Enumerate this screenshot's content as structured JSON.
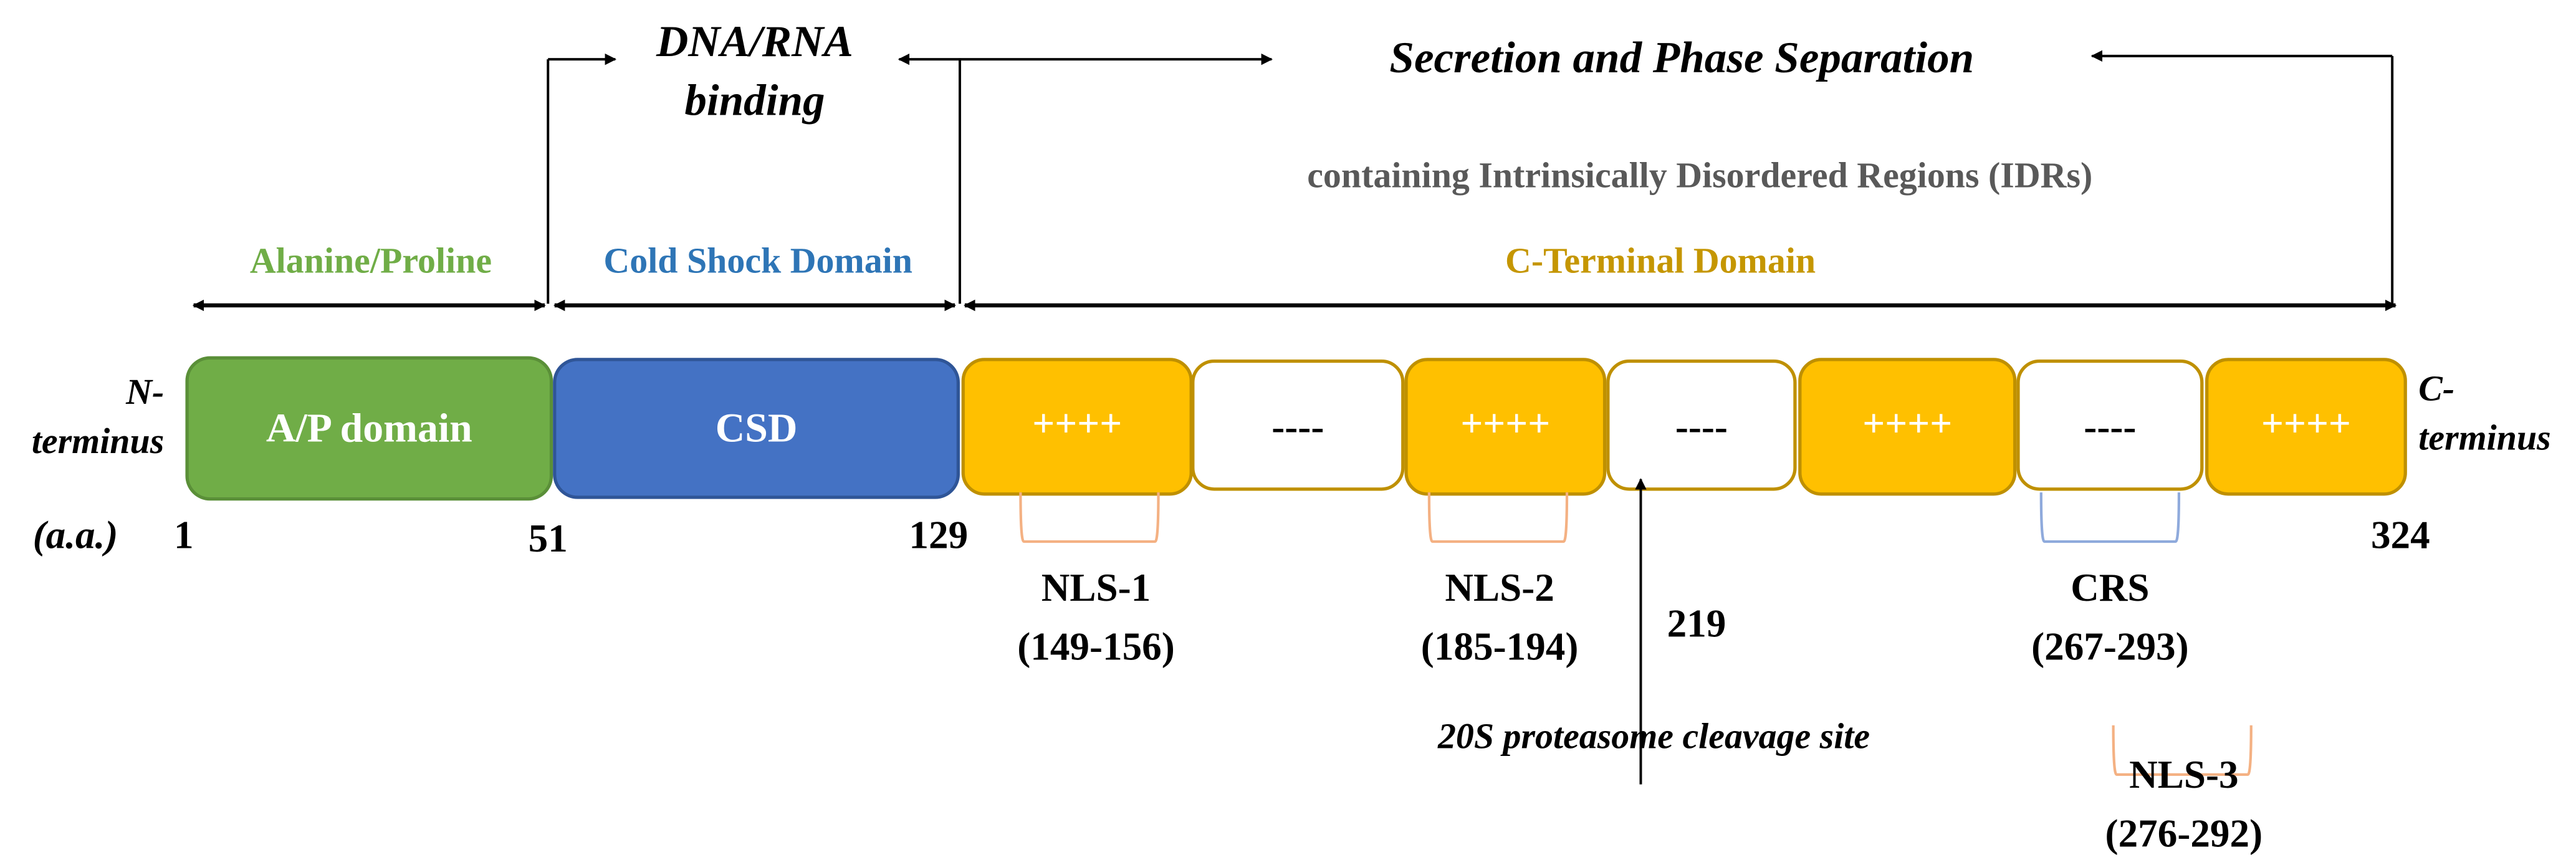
{
  "colors": {
    "ap": "#70ad47",
    "csd": "#4472c4",
    "csd_label": "#2e75b6",
    "ctd_positive": "#ffc000",
    "ctd_border": "#bf9000",
    "ctd_label": "#c59600",
    "idr_label": "#595959",
    "nls_bracket": "#f4b183",
    "crs_bracket": "#8faadc"
  },
  "functions": {
    "dna_rna_line1": "DNA/RNA",
    "dna_rna_line2": "binding",
    "secretion": "Secretion and Phase Separation",
    "idr": "containing Intrinsically Disordered Regions (IDRs)"
  },
  "regions": {
    "ap": "Alanine/Proline",
    "csd": "Cold Shock Domain",
    "ctd": "C-Terminal Domain"
  },
  "termini": {
    "n_line1": "N-",
    "n_line2": "terminus",
    "c_line1": "C-",
    "c_line2": "terminus"
  },
  "boxes": {
    "ap": "A/P domain",
    "csd": "CSD",
    "segments": [
      "++++",
      "----",
      "++++",
      "----",
      "++++",
      "----",
      "++++"
    ]
  },
  "positions": {
    "unit": "(a.a.)",
    "p1": "1",
    "p51": "51",
    "p129": "129",
    "p324": "324"
  },
  "motifs": {
    "nls1": {
      "name": "NLS-1",
      "range": "(149-156)"
    },
    "nls2": {
      "name": "NLS-2",
      "range": "(185-194)"
    },
    "crs": {
      "name": "CRS",
      "range": "(267-293)"
    },
    "nls3": {
      "name": "NLS-3",
      "range": "(276-292)"
    }
  },
  "cleavage": {
    "position": "219",
    "label": "20S proteasome cleavage site"
  }
}
